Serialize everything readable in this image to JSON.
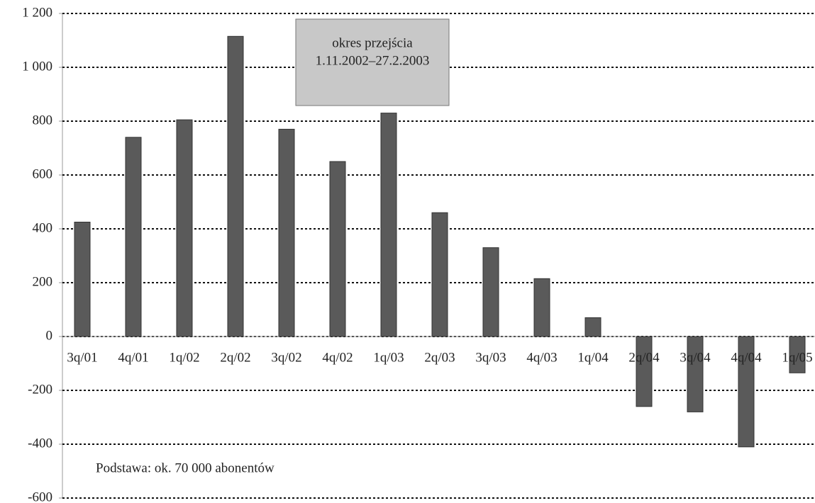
{
  "chart_data": {
    "type": "bar",
    "categories": [
      "3q/01",
      "4q/01",
      "1q/02",
      "2q/02",
      "3q/02",
      "4q/02",
      "1q/03",
      "2q/03",
      "3q/03",
      "4q/03",
      "1q/04",
      "2q/04",
      "3q/04",
      "4q/04",
      "1q/05"
    ],
    "values": [
      425,
      740,
      805,
      1115,
      770,
      650,
      830,
      460,
      330,
      215,
      70,
      -260,
      -280,
      -410,
      -135
    ],
    "color": "#5a5a5a",
    "ylim": [
      -600,
      1200
    ],
    "yticks": [
      -600,
      -400,
      -200,
      0,
      200,
      400,
      600,
      800,
      {
        "value": 1000,
        "label": "1 000"
      },
      {
        "value": 1200,
        "label": "1 200"
      }
    ],
    "grid": true,
    "annotations": [
      "okres przejścia",
      "1.11.2002–27.2.2003"
    ],
    "note": "Podstawa: ok. 70 000 abonentów"
  }
}
